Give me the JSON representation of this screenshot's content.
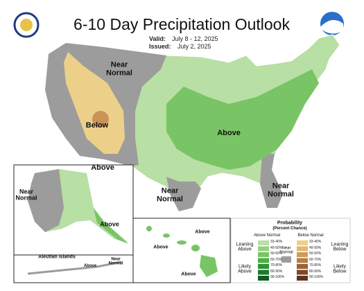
{
  "header": {
    "title": "6-10 Day Precipitation Outlook",
    "valid_label": "Valid:",
    "valid": "July 8 - 12, 2025",
    "issued_label": "Issued:",
    "issued": "July 2, 2025"
  },
  "map": {
    "labels": [
      "Near Normal",
      "Below",
      "Above",
      "Above",
      "Near Normal",
      "Near Normal"
    ]
  },
  "alaska": {
    "labels": [
      "Near Normal",
      "Above"
    ]
  },
  "aleutian": {
    "title": "Aleutian Islands",
    "labels": [
      "Above",
      "Near Normal"
    ]
  },
  "hawaii": {
    "labels": [
      "Above",
      "Above",
      "Above"
    ]
  },
  "legend": {
    "title": "Probability",
    "subtitle": "(Percent Chance)",
    "above_header": "Above Normal",
    "below_header": "Below Normal",
    "leaning_above": "Leaning Above",
    "likely_above": "Likely Above",
    "near_normal": "Near Normal",
    "leaning_below": "Leaning Below",
    "likely_below": "Likely Below",
    "above_ranges": [
      "33-40%",
      "40-50%",
      "50-60%",
      "60-70%",
      "70-80%",
      "80-90%",
      "90-100%"
    ],
    "below_ranges": [
      "33-40%",
      "40-50%",
      "50-60%",
      "60-70%",
      "70-80%",
      "80-90%",
      "90-100%"
    ]
  }
}
